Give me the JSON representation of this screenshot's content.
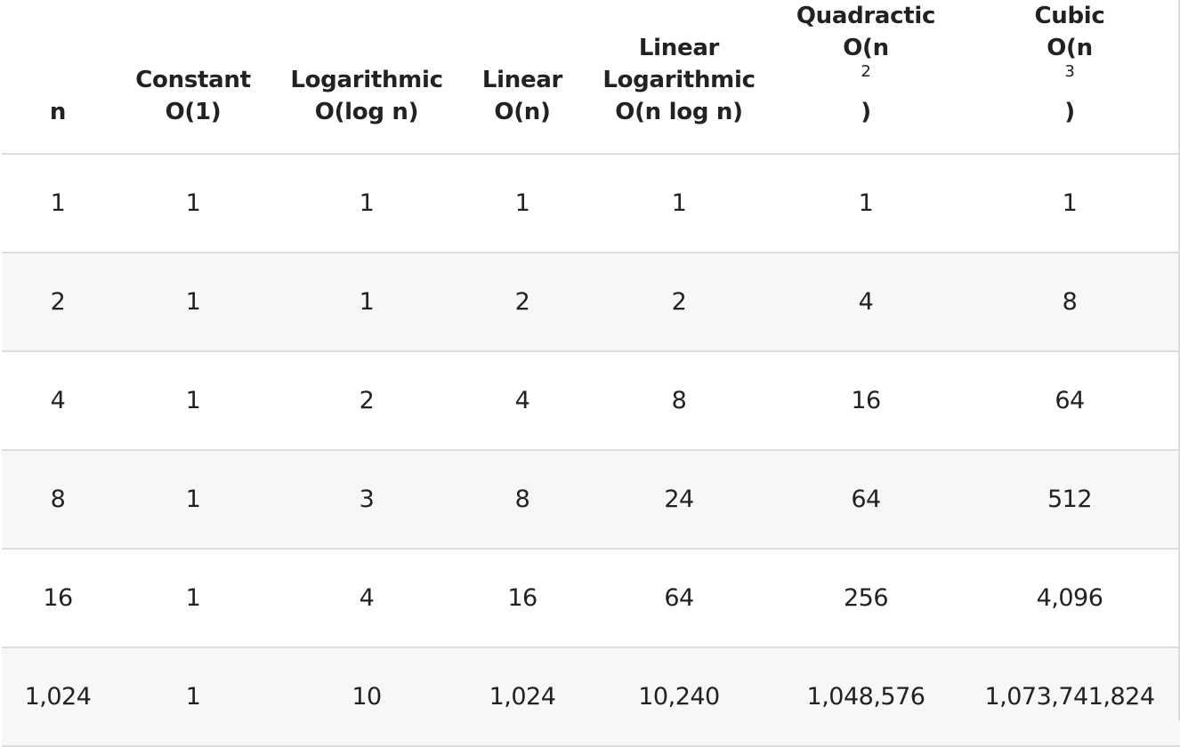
{
  "headers": [
    {
      "lines": [
        "n"
      ],
      "sup": ""
    },
    {
      "lines": [
        "Constant",
        "O(1)"
      ],
      "sup": ""
    },
    {
      "lines": [
        "Logarithmic",
        "O(log n)"
      ],
      "sup": ""
    },
    {
      "lines": [
        "Linear",
        "O(n)"
      ],
      "sup": ""
    },
    {
      "lines": [
        "Linear",
        "Logarithmic",
        "O(n log n)"
      ],
      "sup": ""
    },
    {
      "lines": [
        "Quadractic",
        "O(n"
      ],
      "sup": "2",
      "tail": ")"
    },
    {
      "lines": [
        "Cubic",
        "O(n"
      ],
      "sup": "3",
      "tail": ")"
    }
  ],
  "rows": [
    [
      "1",
      "1",
      "1",
      "1",
      "1",
      "1",
      "1"
    ],
    [
      "2",
      "1",
      "1",
      "2",
      "2",
      "4",
      "8"
    ],
    [
      "4",
      "1",
      "2",
      "4",
      "8",
      "16",
      "64"
    ],
    [
      "8",
      "1",
      "3",
      "8",
      "24",
      "64",
      "512"
    ],
    [
      "16",
      "1",
      "4",
      "16",
      "64",
      "256",
      "4,096"
    ],
    [
      "1,024",
      "1",
      "10",
      "1,024",
      "10,240",
      "1,048,576",
      "1,073,741,824"
    ]
  ]
}
